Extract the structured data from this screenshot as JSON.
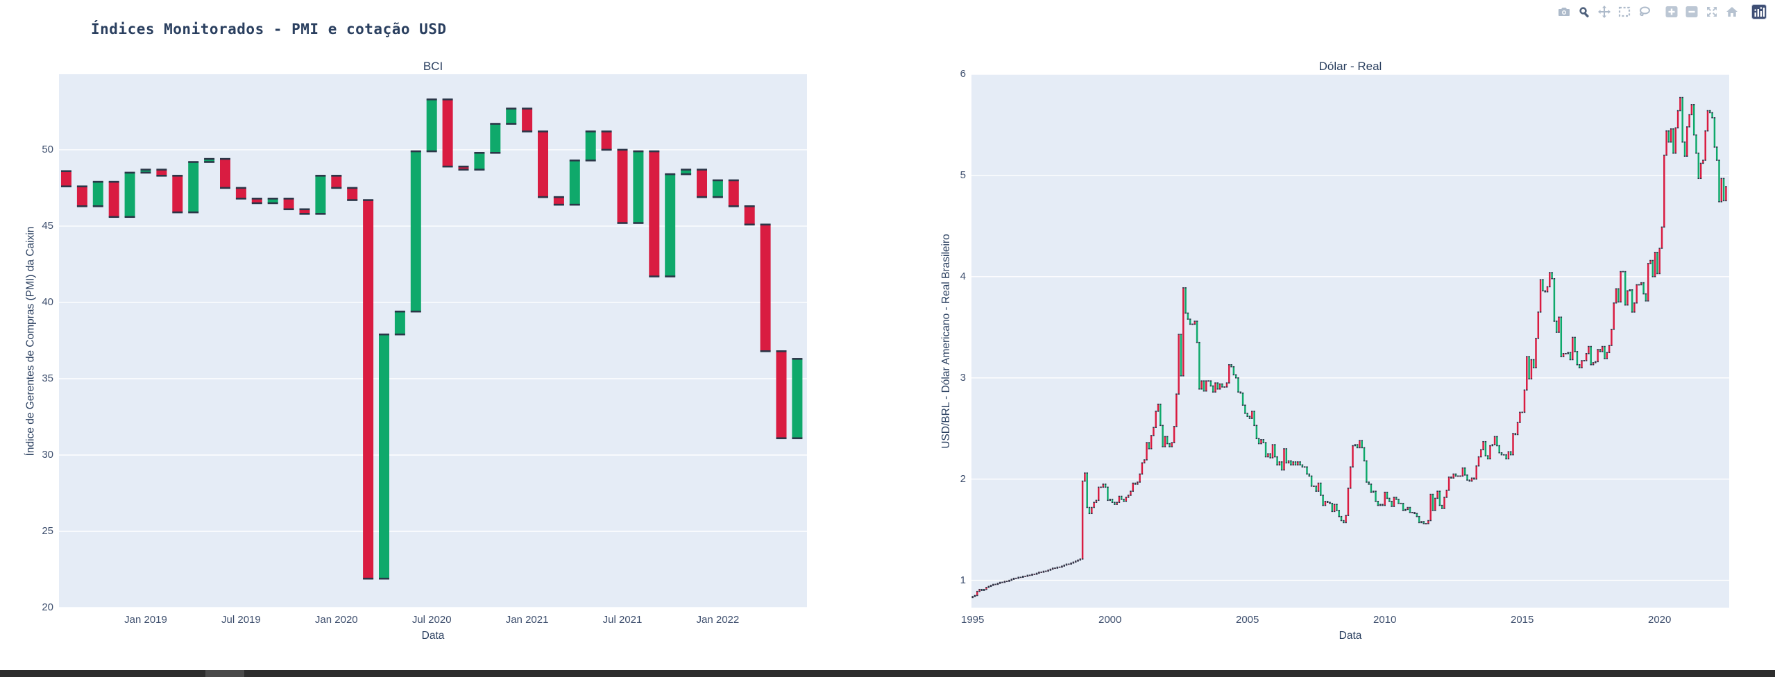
{
  "page": {
    "title": "Índices Monitorados - PMI e cotação USD"
  },
  "colors": {
    "text": "#2a3f5f",
    "tick_text": "#3d4e6d",
    "plot_bg": "#e5ecf6",
    "grid": "#ffffff",
    "candle_red": "#d91c41",
    "candle_green": "#0fa96b",
    "candle_edge": "#2b3648",
    "modebar_icon": "#adbaca",
    "modebar_icon_active": "#4f617c",
    "plotly_logo_bg": "#3f4f75",
    "bottom_bar": "#2d2d2d"
  },
  "modebar": {
    "icons": [
      "camera-download-icon",
      "zoom-icon",
      "pan-icon",
      "box-select-icon",
      "lasso-select-icon",
      "zoom-in-icon",
      "zoom-out-icon",
      "autoscale-icon",
      "reset-home-icon",
      "plotly-logo-icon"
    ]
  },
  "chart_data": [
    {
      "type": "candlestick",
      "title": "BCI",
      "xlabel": "Data",
      "ylabel": "Índice de Gerentes de Compras (PMI) da Caixin",
      "x_ticks": [
        "Jan 2019",
        "Jul 2019",
        "Jan 2020",
        "Jul 2020",
        "Jan 2021",
        "Jul 2021",
        "Jan 2022"
      ],
      "x_tick_month_index": [
        5,
        11,
        17,
        23,
        29,
        35,
        41
      ],
      "y_ticks": [
        20,
        25,
        30,
        35,
        40,
        45,
        50
      ],
      "ylim": [
        20.0,
        54.95
      ],
      "x_start": "Aug 2018",
      "frequency": "monthly",
      "grid": "horizontal-only",
      "legend": "none",
      "open_first": 48.6,
      "close": [
        47.6,
        46.3,
        47.9,
        45.6,
        48.5,
        48.7,
        48.3,
        45.9,
        49.2,
        49.4,
        47.5,
        46.8,
        46.5,
        46.8,
        46.1,
        45.8,
        48.3,
        47.5,
        46.7,
        21.9,
        37.9,
        39.4,
        49.9,
        53.3,
        48.9,
        48.7,
        49.8,
        51.7,
        52.7,
        51.2,
        46.9,
        46.4,
        49.3,
        51.2,
        50.0,
        45.2,
        49.9,
        41.7,
        48.4,
        48.7,
        46.9,
        48.0,
        46.3,
        45.1,
        36.8,
        31.1,
        36.3
      ],
      "increasing_color": "#0fa96b",
      "decreasing_color": "#d91c41"
    },
    {
      "type": "candlestick",
      "title": "Dólar - Real",
      "xlabel": "Data",
      "ylabel": "USD/BRL - Dólar Americano - Real Brasileiro",
      "x_ticks": [
        "1995",
        "2000",
        "2005",
        "2010",
        "2015",
        "2020"
      ],
      "x_tick_month_index": [
        0,
        60,
        120,
        180,
        240,
        300
      ],
      "y_ticks": [
        1,
        2,
        3,
        4,
        5,
        6
      ],
      "ylim": [
        0.73,
        6.0
      ],
      "x_start": "Jan 1995",
      "frequency": "monthly",
      "grid": "horizontal-only",
      "legend": "none",
      "open_first": 0.83,
      "close": [
        0.84,
        0.85,
        0.89,
        0.91,
        0.9,
        0.91,
        0.93,
        0.94,
        0.95,
        0.96,
        0.96,
        0.97,
        0.98,
        0.98,
        0.99,
        0.99,
        1.0,
        1.01,
        1.02,
        1.02,
        1.03,
        1.03,
        1.04,
        1.04,
        1.05,
        1.05,
        1.06,
        1.06,
        1.07,
        1.08,
        1.08,
        1.09,
        1.09,
        1.1,
        1.11,
        1.12,
        1.12,
        1.13,
        1.13,
        1.14,
        1.15,
        1.16,
        1.16,
        1.17,
        1.18,
        1.19,
        1.2,
        1.21,
        1.98,
        2.06,
        1.72,
        1.66,
        1.72,
        1.77,
        1.79,
        1.92,
        1.92,
        1.95,
        1.92,
        1.79,
        1.8,
        1.77,
        1.75,
        1.77,
        1.83,
        1.8,
        1.78,
        1.82,
        1.84,
        1.88,
        1.96,
        1.95,
        1.97,
        2.05,
        2.16,
        2.19,
        2.36,
        2.3,
        2.43,
        2.51,
        2.67,
        2.74,
        2.53,
        2.32,
        2.42,
        2.35,
        2.32,
        2.36,
        2.52,
        2.84,
        3.43,
        3.02,
        3.89,
        3.64,
        3.58,
        3.53,
        3.53,
        3.56,
        3.35,
        2.89,
        2.97,
        2.87,
        2.97,
        2.97,
        2.92,
        2.86,
        2.95,
        2.89,
        2.94,
        2.91,
        2.91,
        2.95,
        3.13,
        3.11,
        3.03,
        3.0,
        2.86,
        2.85,
        2.73,
        2.65,
        2.62,
        2.6,
        2.67,
        2.53,
        2.4,
        2.35,
        2.39,
        2.36,
        2.22,
        2.25,
        2.21,
        2.34,
        2.22,
        2.14,
        2.17,
        2.09,
        2.3,
        2.16,
        2.18,
        2.14,
        2.17,
        2.14,
        2.17,
        2.14,
        2.12,
        2.12,
        2.05,
        2.03,
        1.93,
        1.93,
        1.88,
        1.96,
        1.84,
        1.74,
        1.78,
        1.77,
        1.76,
        1.68,
        1.75,
        1.69,
        1.63,
        1.59,
        1.57,
        1.64,
        1.91,
        2.12,
        2.33,
        2.34,
        2.31,
        2.38,
        2.31,
        2.18,
        1.97,
        1.95,
        1.87,
        1.88,
        1.78,
        1.74,
        1.75,
        1.74,
        1.87,
        1.81,
        1.78,
        1.73,
        1.82,
        1.8,
        1.76,
        1.76,
        1.69,
        1.7,
        1.72,
        1.67,
        1.67,
        1.66,
        1.63,
        1.57,
        1.58,
        1.56,
        1.56,
        1.59,
        1.85,
        1.69,
        1.81,
        1.88,
        1.74,
        1.71,
        1.82,
        1.89,
        2.02,
        2.01,
        2.05,
        2.03,
        2.03,
        2.03,
        2.11,
        2.04,
        1.99,
        1.98,
        2.01,
        2.0,
        2.13,
        2.22,
        2.29,
        2.37,
        2.23,
        2.2,
        2.33,
        2.34,
        2.42,
        2.33,
        2.26,
        2.24,
        2.24,
        2.2,
        2.27,
        2.24,
        2.45,
        2.44,
        2.56,
        2.66,
        2.66,
        2.88,
        3.21,
        2.99,
        3.18,
        3.1,
        3.39,
        3.65,
        3.97,
        3.86,
        3.85,
        3.9,
        4.04,
        3.98,
        3.56,
        3.45,
        3.6,
        3.21,
        3.24,
        3.24,
        3.25,
        3.18,
        3.4,
        3.26,
        3.13,
        3.1,
        3.17,
        3.17,
        3.24,
        3.31,
        3.13,
        3.15,
        3.16,
        3.28,
        3.26,
        3.31,
        3.19,
        3.25,
        3.32,
        3.48,
        3.74,
        3.88,
        3.75,
        4.05,
        4.05,
        3.72,
        3.86,
        3.87,
        3.65,
        3.74,
        3.92,
        3.92,
        3.94,
        3.83,
        3.76,
        4.13,
        4.16,
        4.0,
        4.24,
        4.03,
        4.28,
        4.49,
        5.2,
        5.44,
        5.33,
        5.46,
        5.22,
        5.47,
        5.64,
        5.77,
        5.33,
        5.19,
        5.48,
        5.6,
        5.7,
        5.4,
        5.22,
        4.97,
        5.12,
        5.15,
        5.44,
        5.64,
        5.62,
        5.57,
        5.28,
        5.15,
        4.74,
        4.97,
        4.75,
        4.89
      ],
      "increasing_color": "#d91c41",
      "decreasing_color": "#0fa96b"
    }
  ]
}
